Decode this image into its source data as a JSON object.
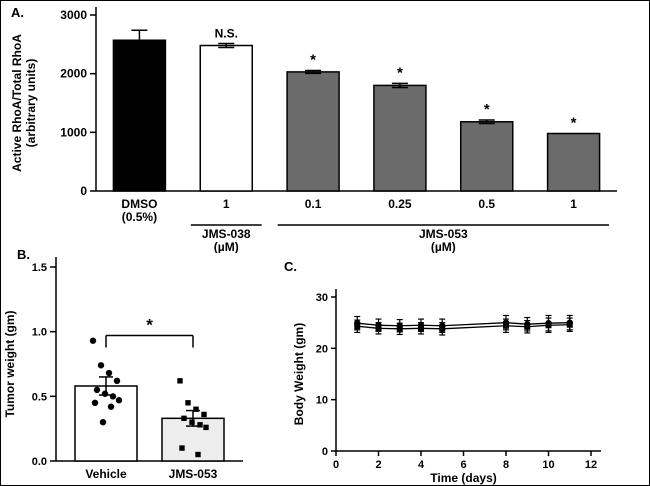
{
  "panels": {
    "a_label": "A.",
    "b_label": "B.",
    "c_label": "C."
  },
  "colors": {
    "black_bar": "#000000",
    "white_bar": "#ffffff",
    "gray_bar": "#6b6b6b",
    "light_gray_bar": "#ededed",
    "axis": "#000000"
  },
  "chart_data": [
    {
      "id": "panelA",
      "type": "bar",
      "ylabel_lines": [
        "Active RhoA/Total RhoA",
        "(arbitrary units)"
      ],
      "ylim": [
        0,
        3000
      ],
      "yticks": [
        0,
        1000,
        2000,
        3000
      ],
      "categories": [
        [
          "DMSO",
          "(0.5%)"
        ],
        [
          "1"
        ],
        [
          "0.1"
        ],
        [
          "0.25"
        ],
        [
          "0.5"
        ],
        [
          "1"
        ]
      ],
      "values": [
        2570,
        2480,
        2030,
        1800,
        1180,
        980
      ],
      "errors": [
        170,
        35,
        25,
        35,
        30,
        0
      ],
      "bar_colors": [
        "#000000",
        "#ffffff",
        "#6b6b6b",
        "#6b6b6b",
        "#6b6b6b",
        "#6b6b6b"
      ],
      "annotations": [
        "",
        "N.S.",
        "*",
        "*",
        "*",
        "*"
      ],
      "groups": [
        {
          "label_lines": [
            "JMS-038",
            "(µM)"
          ],
          "from": 1,
          "to": 1
        },
        {
          "label_lines": [
            "JMS-053",
            "(µM)"
          ],
          "from": 2,
          "to": 5
        }
      ],
      "grid": false,
      "legend": "none"
    },
    {
      "id": "panelB",
      "type": "bar-scatter",
      "ylabel": "Tumor weight (gm)",
      "ylim": [
        0,
        1.5
      ],
      "yticks": [
        "0.0",
        "0.5",
        "1.0",
        "1.5"
      ],
      "categories": [
        "Vehicle",
        "JMS-053"
      ],
      "values": [
        0.58,
        0.33
      ],
      "errors": [
        0.07,
        0.06
      ],
      "bar_colors": [
        "#ffffff",
        "#ededed"
      ],
      "scatter": [
        [
          0.93,
          0.74,
          0.68,
          0.62,
          0.55,
          0.52,
          0.5,
          0.47,
          0.45,
          0.42,
          0.3
        ],
        [
          0.62,
          0.45,
          0.4,
          0.36,
          0.33,
          0.3,
          0.28,
          0.26,
          0.1,
          0.05
        ]
      ],
      "scatter_markers": [
        "circle",
        "square"
      ],
      "sig_label": "*",
      "grid": false,
      "legend": "none"
    },
    {
      "id": "panelC",
      "type": "line",
      "xlabel": "Time (days)",
      "ylabel": "Body Weight (gm)",
      "xlim": [
        0,
        12
      ],
      "xticks": [
        0,
        2,
        4,
        6,
        8,
        10,
        12
      ],
      "ylim": [
        0,
        30
      ],
      "yticks": [
        0,
        10,
        20,
        30
      ],
      "x": [
        1,
        2,
        3,
        4,
        5,
        8,
        9,
        10,
        11
      ],
      "series": [
        {
          "marker": "circle",
          "values": [
            24.9,
            24.5,
            24.4,
            24.5,
            24.4,
            25.0,
            24.7,
            24.9,
            25.0
          ],
          "errors": [
            1.3,
            1.2,
            1.2,
            1.2,
            1.3,
            1.4,
            1.3,
            1.5,
            1.4
          ]
        },
        {
          "marker": "square",
          "values": [
            24.3,
            23.9,
            23.8,
            23.9,
            23.8,
            24.4,
            24.2,
            24.5,
            24.6
          ],
          "errors": [
            1.2,
            1.1,
            1.1,
            1.1,
            1.2,
            1.3,
            1.2,
            1.4,
            1.3
          ]
        }
      ],
      "grid": false,
      "legend": "none"
    }
  ]
}
